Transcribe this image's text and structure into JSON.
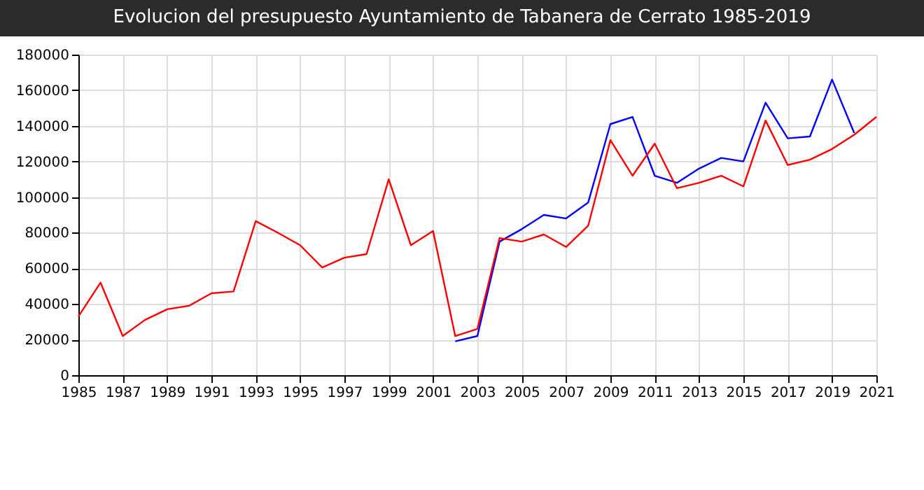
{
  "chart_data": {
    "type": "line",
    "title": "Evolucion del presupuesto Ayuntamiento de Tabanera de Cerrato 1985-2019",
    "x": [
      1985,
      1986,
      1987,
      1988,
      1989,
      1990,
      1991,
      1992,
      1993,
      1994,
      1995,
      1996,
      1997,
      1998,
      1999,
      2000,
      2001,
      2002,
      2003,
      2004,
      2005,
      2006,
      2007,
      2008,
      2009,
      2010,
      2011,
      2012,
      2013,
      2014,
      2015,
      2016,
      2017,
      2018,
      2019,
      2020,
      2021
    ],
    "series": [
      {
        "color": "#0000ff",
        "values": [
          null,
          null,
          null,
          null,
          null,
          null,
          null,
          null,
          null,
          null,
          null,
          null,
          null,
          null,
          null,
          null,
          null,
          19000,
          22000,
          75000,
          82000,
          90000,
          88000,
          97000,
          141000,
          145000,
          112000,
          108000,
          116000,
          122000,
          120000,
          153000,
          133000,
          134000,
          166000,
          136000,
          null
        ]
      },
      {
        "color": "#ff0000",
        "values": [
          33000,
          52000,
          22000,
          31000,
          37000,
          39000,
          46000,
          47000,
          86500,
          80000,
          73000,
          60500,
          66000,
          68000,
          110000,
          73000,
          81000,
          22000,
          26000,
          77000,
          75000,
          79000,
          72000,
          84000,
          132000,
          112000,
          130000,
          105000,
          108000,
          112000,
          106000,
          143000,
          118000,
          121000,
          127000,
          135000,
          145000
        ]
      }
    ],
    "xlim": [
      1985,
      2021
    ],
    "xticks": [
      1985,
      1987,
      1989,
      1991,
      1993,
      1995,
      1997,
      1999,
      2001,
      2003,
      2005,
      2007,
      2009,
      2011,
      2013,
      2015,
      2017,
      2019,
      2021
    ],
    "ylim": [
      0,
      180000
    ],
    "yticks": [
      0,
      20000,
      40000,
      60000,
      80000,
      100000,
      120000,
      140000,
      160000,
      180000
    ],
    "grid": true,
    "legend": false
  }
}
